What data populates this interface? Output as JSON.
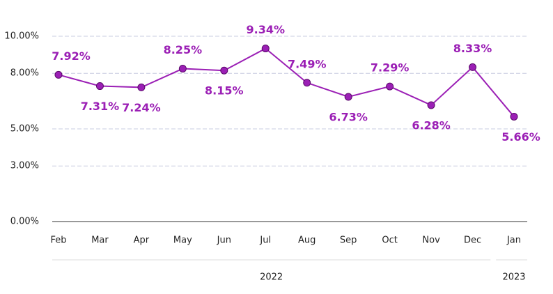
{
  "chart_data": {
    "type": "line",
    "categories": [
      "Feb",
      "Mar",
      "Apr",
      "May",
      "Jun",
      "Jul",
      "Aug",
      "Sep",
      "Oct",
      "Nov",
      "Dec",
      "Jan"
    ],
    "x_groups": [
      {
        "label": "2022",
        "members": [
          "Feb",
          "Mar",
          "Apr",
          "May",
          "Jun",
          "Jul",
          "Aug",
          "Sep",
          "Oct",
          "Nov",
          "Dec"
        ]
      },
      {
        "label": "2023",
        "members": [
          "Jan"
        ]
      }
    ],
    "series": [
      {
        "color": "#9b1fb5",
        "values": [
          7.92,
          7.31,
          7.24,
          8.25,
          8.15,
          9.34,
          7.49,
          6.73,
          7.29,
          6.28,
          8.33,
          5.66
        ],
        "value_labels": [
          "7.92%",
          "7.31%",
          "7.24%",
          "8.25%",
          "8.15%",
          "9.34%",
          "7.49%",
          "6.73%",
          "7.29%",
          "6.28%",
          "8.33%",
          "5.66%"
        ]
      }
    ],
    "ylim": [
      0,
      10
    ],
    "yticks": [
      {
        "value": 0,
        "label": "0.00%"
      },
      {
        "value": 3,
        "label": "3.00%"
      },
      {
        "value": 5,
        "label": "5.00%"
      },
      {
        "value": 8,
        "label": "8.00%"
      },
      {
        "value": 10,
        "label": "10.00%"
      }
    ],
    "grid": true
  }
}
